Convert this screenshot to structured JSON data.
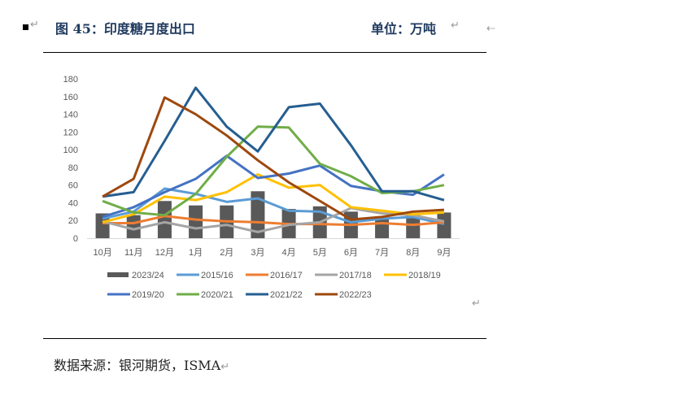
{
  "header": {
    "figure_title": "图 45：印度糖月度出口",
    "unit_label": "单位：万吨"
  },
  "footer": {
    "source": "数据来源：银河期货，ISMA"
  },
  "marks": {
    "paragraph": "↵"
  },
  "chart_data": {
    "type": "bar+line",
    "title": "",
    "xlabel": "",
    "ylabel": "",
    "ylim": [
      0,
      180
    ],
    "yticks": [
      0,
      20,
      40,
      60,
      80,
      100,
      120,
      140,
      160,
      180
    ],
    "grid": false,
    "legend_position": "bottom",
    "categories": [
      "10月",
      "11月",
      "12月",
      "1月",
      "2月",
      "3月",
      "4月",
      "5月",
      "6月",
      "7月",
      "8月",
      "9月"
    ],
    "bar_series": {
      "name": "2023/24",
      "color": "#595959",
      "values": [
        28,
        26,
        42,
        37,
        37,
        53,
        33,
        36,
        30,
        22,
        26,
        29
      ]
    },
    "series": [
      {
        "name": "2015/16",
        "color": "#5B9BD5",
        "values": [
          22,
          30,
          56,
          50,
          41,
          45,
          31,
          30,
          18,
          22,
          24,
          16
        ]
      },
      {
        "name": "2016/17",
        "color": "#ED7D31",
        "values": [
          17,
          17,
          25,
          21,
          19,
          18,
          16,
          16,
          15,
          17,
          15,
          18
        ]
      },
      {
        "name": "2017/18",
        "color": "#A5A5A5",
        "values": [
          19,
          10,
          18,
          11,
          15,
          7,
          15,
          18,
          34,
          28,
          26,
          19
        ]
      },
      {
        "name": "2018/19",
        "color": "#FFC000",
        "values": [
          18,
          27,
          47,
          43,
          52,
          72,
          57,
          60,
          35,
          31,
          27,
          29
        ]
      },
      {
        "name": "2019/20",
        "color": "#4472C4",
        "values": [
          24,
          35,
          52,
          67,
          93,
          68,
          73,
          82,
          59,
          53,
          49,
          72
        ]
      },
      {
        "name": "2020/21",
        "color": "#70AD47",
        "values": [
          42,
          29,
          26,
          50,
          92,
          126,
          125,
          84,
          70,
          51,
          53,
          60
        ]
      },
      {
        "name": "2021/22",
        "color": "#255E91",
        "values": [
          47,
          52,
          110,
          170,
          126,
          98,
          148,
          152,
          105,
          53,
          53,
          43
        ]
      },
      {
        "name": "2022/23",
        "color": "#9E480E",
        "values": [
          47,
          67,
          159,
          140,
          116,
          88,
          63,
          42,
          21,
          24,
          30,
          32
        ]
      }
    ]
  }
}
